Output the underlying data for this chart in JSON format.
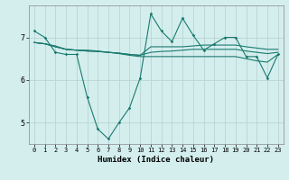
{
  "xlabel": "Humidex (Indice chaleur)",
  "bg_color": "#d4eeee",
  "line_color": "#1a7a6e",
  "grid_color": "#b8d4d4",
  "xlim": [
    -0.5,
    23.5
  ],
  "ylim": [
    4.5,
    7.75
  ],
  "yticks": [
    5,
    6,
    7
  ],
  "xticks": [
    0,
    1,
    2,
    3,
    4,
    5,
    6,
    7,
    8,
    9,
    10,
    11,
    12,
    13,
    14,
    15,
    16,
    17,
    18,
    19,
    20,
    21,
    22,
    23
  ],
  "line1": [
    7.15,
    7.0,
    6.65,
    6.6,
    6.6,
    5.6,
    4.85,
    4.62,
    5.0,
    5.35,
    6.05,
    7.55,
    7.15,
    6.9,
    7.45,
    7.05,
    6.7,
    6.85,
    7.0,
    7.0,
    6.55,
    6.55,
    6.05,
    6.6
  ],
  "line2": [
    6.88,
    6.85,
    6.78,
    6.72,
    6.7,
    6.68,
    6.67,
    6.65,
    6.63,
    6.6,
    6.58,
    6.78,
    6.78,
    6.78,
    6.78,
    6.8,
    6.82,
    6.82,
    6.82,
    6.82,
    6.78,
    6.75,
    6.72,
    6.72
  ],
  "line3": [
    6.88,
    6.85,
    6.78,
    6.72,
    6.7,
    6.68,
    6.67,
    6.65,
    6.63,
    6.6,
    6.58,
    6.65,
    6.67,
    6.68,
    6.7,
    6.72,
    6.72,
    6.72,
    6.72,
    6.72,
    6.68,
    6.65,
    6.62,
    6.65
  ],
  "line4": [
    6.88,
    6.85,
    6.8,
    6.72,
    6.7,
    6.7,
    6.68,
    6.65,
    6.62,
    6.58,
    6.55,
    6.55,
    6.55,
    6.55,
    6.55,
    6.55,
    6.55,
    6.55,
    6.55,
    6.55,
    6.5,
    6.45,
    6.42,
    6.6
  ]
}
